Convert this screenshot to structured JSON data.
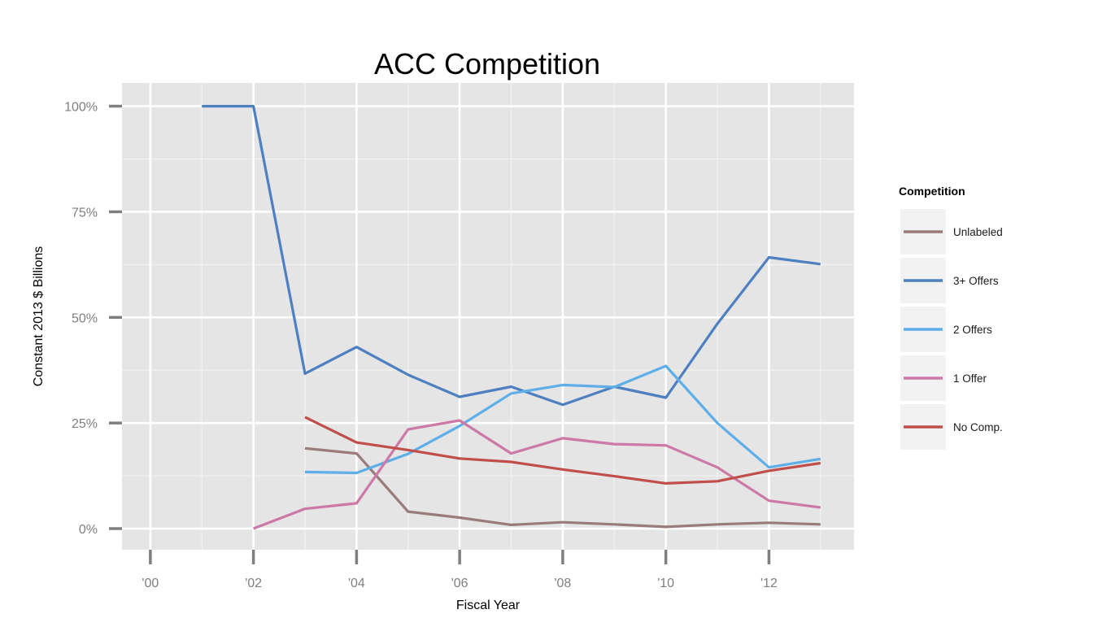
{
  "chart_data": {
    "type": "line",
    "title": "ACC Competition",
    "xlabel": "Fiscal Year",
    "ylabel": "Constant 2013 $ Billions",
    "xlim": [
      1999.45,
      2013.65
    ],
    "ylim": [
      -0.05,
      1.055
    ],
    "x_ticks": [
      2000,
      2002,
      2004,
      2006,
      2008,
      2010,
      2012
    ],
    "x_tick_labels": [
      "'00",
      "'02",
      "'04",
      "'06",
      "'08",
      "'10",
      "'12"
    ],
    "y_ticks": [
      0,
      0.25,
      0.5,
      0.75,
      1.0
    ],
    "y_tick_labels": [
      "0%",
      "25%",
      "50%",
      "75%",
      "100%"
    ],
    "grid": true,
    "legend_title": "Competition",
    "legend_position": "right",
    "series": [
      {
        "name": "Unlabeled",
        "color": "#9a7b7b",
        "points": [
          [
            2003,
            0.19
          ],
          [
            2004,
            0.178
          ],
          [
            2005,
            0.04
          ],
          [
            2006,
            0.026
          ],
          [
            2007,
            0.009
          ],
          [
            2008,
            0.015
          ],
          [
            2009,
            0.01
          ],
          [
            2010,
            0.004
          ],
          [
            2011,
            0.01
          ],
          [
            2012,
            0.014
          ],
          [
            2013,
            0.01
          ]
        ]
      },
      {
        "name": "3+ Offers",
        "color": "#4e7fc1",
        "points": [
          [
            2001,
            1.0
          ],
          [
            2002,
            1.0
          ],
          [
            2003,
            0.367
          ],
          [
            2004,
            0.43
          ],
          [
            2005,
            0.364
          ],
          [
            2006,
            0.312
          ],
          [
            2007,
            0.336
          ],
          [
            2008,
            0.293
          ],
          [
            2009,
            0.336
          ],
          [
            2010,
            0.31
          ],
          [
            2011,
            0.485
          ],
          [
            2012,
            0.642
          ],
          [
            2013,
            0.626
          ]
        ]
      },
      {
        "name": "2 Offers",
        "color": "#5eaee8",
        "points": [
          [
            2003,
            0.134
          ],
          [
            2004,
            0.132
          ],
          [
            2005,
            0.177
          ],
          [
            2006,
            0.243
          ],
          [
            2007,
            0.32
          ],
          [
            2008,
            0.34
          ],
          [
            2009,
            0.335
          ],
          [
            2010,
            0.385
          ],
          [
            2011,
            0.25
          ],
          [
            2012,
            0.145
          ],
          [
            2013,
            0.165
          ]
        ]
      },
      {
        "name": "1 Offer",
        "color": "#cc79a7",
        "points": [
          [
            2002,
            0.0
          ],
          [
            2003,
            0.047
          ],
          [
            2004,
            0.06
          ],
          [
            2005,
            0.235
          ],
          [
            2006,
            0.256
          ],
          [
            2007,
            0.178
          ],
          [
            2008,
            0.214
          ],
          [
            2009,
            0.2
          ],
          [
            2010,
            0.197
          ],
          [
            2011,
            0.145
          ],
          [
            2012,
            0.066
          ],
          [
            2013,
            0.05
          ]
        ]
      },
      {
        "name": "No Comp.",
        "color": "#c04f4b",
        "points": [
          [
            2003,
            0.264
          ],
          [
            2004,
            0.204
          ],
          [
            2005,
            0.186
          ],
          [
            2006,
            0.166
          ],
          [
            2007,
            0.158
          ],
          [
            2008,
            0.14
          ],
          [
            2009,
            0.124
          ],
          [
            2010,
            0.107
          ],
          [
            2011,
            0.112
          ],
          [
            2012,
            0.137
          ],
          [
            2013,
            0.155
          ]
        ]
      }
    ]
  },
  "colors": {
    "panel_background": "#e5e5e5",
    "grid_major": "#ffffff",
    "grid_minor": "#f2f2f2",
    "axis_ticks": "#7f7f7f",
    "legend_key_background": "#f2f2f2"
  }
}
